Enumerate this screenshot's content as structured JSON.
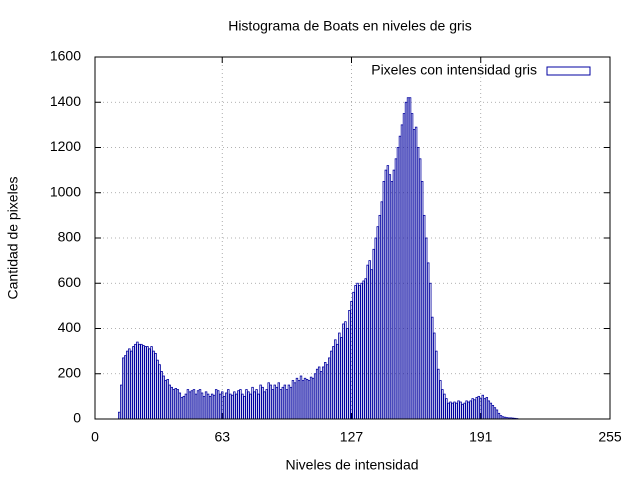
{
  "chart_data": {
    "type": "histogram",
    "title": "Histograma de Boats en niveles de gris",
    "x_label": "Niveles de intensidad",
    "y_label": "Cantidad de pixeles",
    "xlim": [
      0,
      255
    ],
    "xticks": [
      0,
      63,
      127,
      191,
      255
    ],
    "ylim": [
      0,
      1600
    ],
    "yticks": [
      0,
      200,
      400,
      600,
      800,
      1000,
      1200,
      1400,
      1600
    ],
    "grid": true,
    "legend_position": "top-right",
    "x": [
      0,
      1,
      2,
      3,
      4,
      5,
      6,
      7,
      8,
      9,
      10,
      11,
      12,
      13,
      14,
      15,
      16,
      17,
      18,
      19,
      20,
      21,
      22,
      23,
      24,
      25,
      26,
      27,
      28,
      29,
      30,
      31,
      32,
      33,
      34,
      35,
      36,
      37,
      38,
      39,
      40,
      41,
      42,
      43,
      44,
      45,
      46,
      47,
      48,
      49,
      50,
      51,
      52,
      53,
      54,
      55,
      56,
      57,
      58,
      59,
      60,
      61,
      62,
      63,
      64,
      65,
      66,
      67,
      68,
      69,
      70,
      71,
      72,
      73,
      74,
      75,
      76,
      77,
      78,
      79,
      80,
      81,
      82,
      83,
      84,
      85,
      86,
      87,
      88,
      89,
      90,
      91,
      92,
      93,
      94,
      95,
      96,
      97,
      98,
      99,
      100,
      101,
      102,
      103,
      104,
      105,
      106,
      107,
      108,
      109,
      110,
      111,
      112,
      113,
      114,
      115,
      116,
      117,
      118,
      119,
      120,
      121,
      122,
      123,
      124,
      125,
      126,
      127,
      128,
      129,
      130,
      131,
      132,
      133,
      134,
      135,
      136,
      137,
      138,
      139,
      140,
      141,
      142,
      143,
      144,
      145,
      146,
      147,
      148,
      149,
      150,
      151,
      152,
      153,
      154,
      155,
      156,
      157,
      158,
      159,
      160,
      161,
      162,
      163,
      164,
      165,
      166,
      167,
      168,
      169,
      170,
      171,
      172,
      173,
      174,
      175,
      176,
      177,
      178,
      179,
      180,
      181,
      182,
      183,
      184,
      185,
      186,
      187,
      188,
      189,
      190,
      191,
      192,
      193,
      194,
      195,
      196,
      197,
      198,
      199,
      200,
      201,
      202,
      203,
      204,
      205,
      206,
      207,
      208,
      209,
      210,
      211,
      212,
      213,
      214,
      215,
      216,
      217,
      218,
      219,
      220,
      221,
      222,
      223,
      224,
      225,
      226,
      227,
      228,
      229,
      230,
      231,
      232,
      233,
      234,
      235,
      236,
      237,
      238,
      239,
      240,
      241,
      242,
      243,
      244,
      245,
      246,
      247,
      248,
      249,
      250,
      251,
      252,
      253,
      254,
      255
    ],
    "series": [
      {
        "name": "Pixeles con intensidad gris",
        "color": "#0000a0",
        "values": [
          0,
          0,
          0,
          0,
          0,
          0,
          0,
          0,
          0,
          0,
          0,
          0,
          30,
          150,
          270,
          280,
          300,
          310,
          300,
          320,
          330,
          340,
          330,
          330,
          325,
          320,
          320,
          310,
          320,
          300,
          290,
          260,
          240,
          210,
          190,
          170,
          175,
          150,
          140,
          130,
          135,
          130,
          115,
          95,
          100,
          110,
          130,
          120,
          125,
          130,
          110,
          125,
          130,
          115,
          100,
          120,
          110,
          100,
          110,
          105,
          130,
          125,
          110,
          120,
          100,
          115,
          130,
          110,
          105,
          120,
          110,
          125,
          130,
          110,
          100,
          130,
          120,
          110,
          140,
          120,
          130,
          110,
          150,
          140,
          120,
          130,
          160,
          150,
          130,
          150,
          140,
          160,
          130,
          140,
          150,
          130,
          150,
          140,
          170,
          160,
          180,
          170,
          190,
          170,
          180,
          175,
          170,
          185,
          180,
          200,
          220,
          230,
          210,
          230,
          250,
          240,
          270,
          300,
          320,
          350,
          330,
          380,
          360,
          420,
          430,
          400,
          480,
          520,
          560,
          590,
          600,
          590,
          600,
          610,
          620,
          680,
          700,
          660,
          750,
          800,
          850,
          900,
          960,
          1050,
          1100,
          1120,
          1080,
          1050,
          1100,
          1150,
          1200,
          1250,
          1300,
          1350,
          1400,
          1420,
          1420,
          1350,
          1280,
          1290,
          1200,
          1150,
          1050,
          900,
          800,
          690,
          600,
          450,
          380,
          300,
          220,
          170,
          130,
          110,
          90,
          70,
          75,
          70,
          75,
          70,
          80,
          75,
          65,
          70,
          80,
          75,
          80,
          90,
          85,
          95,
          100,
          90,
          105,
          90,
          95,
          80,
          70,
          60,
          50,
          40,
          25,
          15,
          10,
          8,
          6,
          5,
          5,
          4,
          3,
          2,
          0,
          0,
          0,
          0,
          0,
          0,
          0,
          0,
          0,
          0,
          0,
          0,
          0,
          0,
          0,
          0,
          0,
          0,
          0,
          0,
          0,
          0,
          0,
          0,
          0,
          0,
          0,
          0,
          0,
          0,
          0,
          0,
          0,
          0,
          0,
          0,
          0,
          0,
          0,
          0,
          0,
          0,
          0,
          0,
          0,
          0
        ]
      }
    ]
  }
}
